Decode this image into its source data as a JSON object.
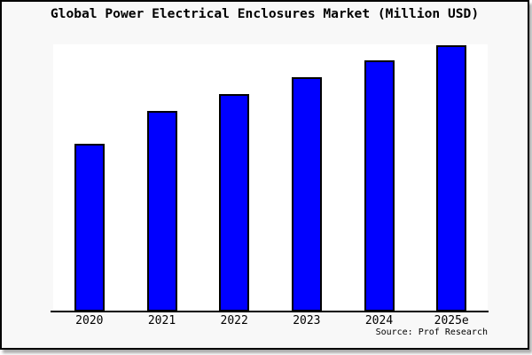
{
  "frame": {
    "background": "#f8f8f8",
    "border_color": "#000000",
    "shadow_color": "#aaaaaa"
  },
  "chart_data": {
    "type": "bar",
    "title": "Global Power Electrical Enclosures Market (Million USD)",
    "categories": [
      "2020",
      "2021",
      "2022",
      "2023",
      "2024",
      "2025e"
    ],
    "values": [
      62.8,
      75.1,
      81.4,
      87.7,
      93.9,
      99.8
    ],
    "ylim": [
      0,
      100
    ],
    "xlabel": "",
    "ylabel": "",
    "grid": false,
    "legend": "none",
    "y_axis_tick_labels_shown": false,
    "note": "No y-axis scale shown in image; values are relative estimates from bar pixel heights (max bar = ~100)",
    "bar_color": "#0000ff",
    "bar_edge_color": "#000000",
    "plot_background": "#ffffff",
    "axis_line_color": "#000000"
  },
  "footer": {
    "source_text": "Source: Prof Research"
  }
}
